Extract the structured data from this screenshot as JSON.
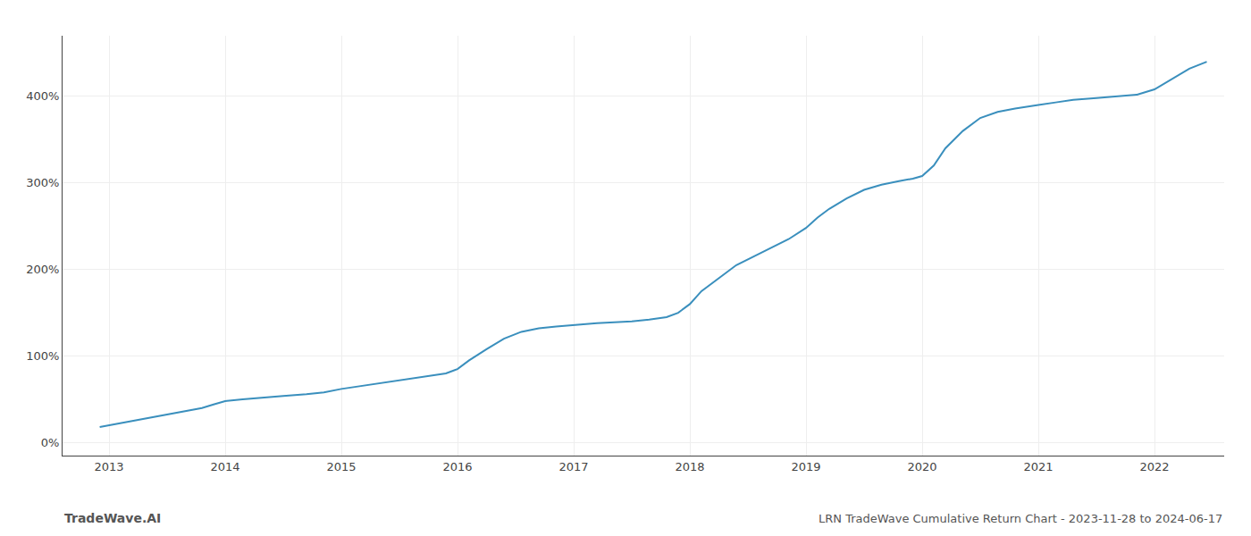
{
  "chart_data": {
    "type": "line",
    "title": "LRN TradeWave Cumulative Return Chart - 2023-11-28 to 2024-06-17",
    "annotations": [
      "TradeWave.AI"
    ],
    "color": "#3a8fbd",
    "grid": true,
    "x": [
      2012.92,
      2013.0,
      2013.1,
      2013.2,
      2013.35,
      2013.5,
      2013.65,
      2013.8,
      2013.9,
      2014.0,
      2014.15,
      2014.3,
      2014.5,
      2014.7,
      2014.85,
      2015.0,
      2015.15,
      2015.3,
      2015.5,
      2015.65,
      2015.8,
      2015.9,
      2016.0,
      2016.1,
      2016.25,
      2016.4,
      2016.55,
      2016.7,
      2016.85,
      2017.0,
      2017.1,
      2017.2,
      2017.35,
      2017.5,
      2017.65,
      2017.8,
      2017.9,
      2018.0,
      2018.1,
      2018.25,
      2018.4,
      2018.55,
      2018.7,
      2018.85,
      2019.0,
      2019.1,
      2019.2,
      2019.35,
      2019.5,
      2019.65,
      2019.8,
      2019.92,
      2020.0,
      2020.1,
      2020.2,
      2020.35,
      2020.5,
      2020.65,
      2020.8,
      2020.92,
      2021.0,
      2021.15,
      2021.3,
      2021.5,
      2021.7,
      2021.85,
      2022.0,
      2022.15,
      2022.3,
      2022.45
    ],
    "values": [
      18,
      20,
      22,
      25,
      28,
      32,
      36,
      40,
      44,
      48,
      50,
      52,
      54,
      56,
      58,
      62,
      65,
      68,
      72,
      75,
      78,
      80,
      85,
      95,
      108,
      120,
      128,
      132,
      134,
      136,
      137,
      138,
      139,
      140,
      142,
      145,
      150,
      160,
      175,
      190,
      205,
      215,
      225,
      235,
      248,
      260,
      270,
      282,
      292,
      298,
      302,
      305,
      308,
      320,
      340,
      360,
      375,
      382,
      386,
      388,
      390,
      393,
      396,
      398,
      400,
      402,
      408,
      420,
      432,
      440
    ],
    "xlim": [
      2012.6,
      2022.6
    ],
    "xticks": [
      2013,
      2014,
      2015,
      2016,
      2017,
      2018,
      2019,
      2020,
      2021,
      2022
    ],
    "ylim": [
      -15,
      470
    ],
    "yticks": [
      {
        "value": 0,
        "label": "0%"
      },
      {
        "value": 100,
        "label": "100%"
      },
      {
        "value": 200,
        "label": "200%"
      },
      {
        "value": 300,
        "label": "300%"
      },
      {
        "value": 400,
        "label": "400%"
      }
    ]
  }
}
